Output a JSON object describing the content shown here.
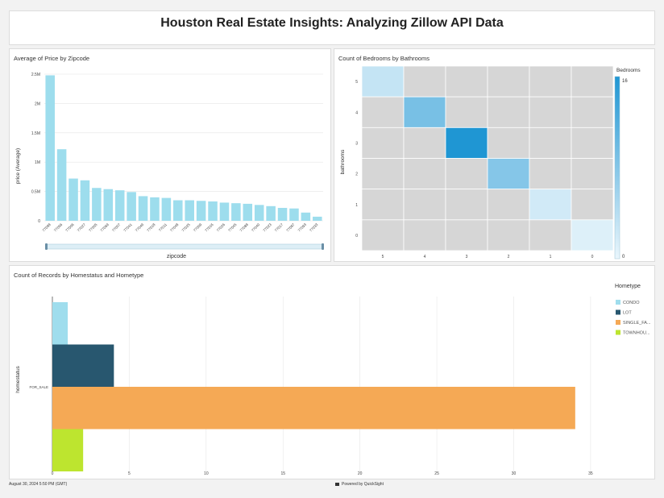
{
  "page": {
    "title": "Houston Real Estate Insights: Analyzing Zillow API Data"
  },
  "footer": {
    "timestamp": "August 30, 2024 5:50 PM (GMT)",
    "powered_by": "Powered by QuickSight"
  },
  "chart_data": [
    {
      "type": "bar",
      "title": "Average of Price by Zipcode",
      "xlabel": "zipcode",
      "ylabel": "price (Average)",
      "categories": [
        "77098",
        "77056",
        "77006",
        "77027",
        "77005",
        "77069",
        "77007",
        "77041",
        "77049",
        "77018",
        "77011",
        "77048",
        "77025",
        "77009",
        "77016",
        "77026",
        "77045",
        "77088",
        "77040",
        "77023",
        "77017",
        "77087",
        "77093",
        "77033"
      ],
      "values": [
        2480000,
        1220000,
        720000,
        690000,
        560000,
        540000,
        520000,
        490000,
        420000,
        400000,
        390000,
        350000,
        350000,
        340000,
        330000,
        310000,
        300000,
        290000,
        270000,
        250000,
        220000,
        210000,
        140000,
        70000
      ],
      "yticks": [
        0,
        500000,
        1000000,
        1500000,
        2000000,
        2500000
      ],
      "ytick_labels": [
        "0",
        "0.5M",
        "1M",
        "1.5M",
        "2M",
        "2.5M"
      ],
      "ylim": [
        0,
        2500000
      ],
      "color": "#9ddded",
      "grid": true
    },
    {
      "type": "heatmap",
      "title": "Count of Bedrooms by Bathrooms",
      "ylabel": "bathrooms",
      "legend_title": "Bedrooms",
      "legend_min": "0",
      "legend_max": "16",
      "x_categories": [
        "5",
        "4",
        "3",
        "2",
        "1",
        "0"
      ],
      "y_categories": [
        "5",
        "4",
        "3",
        "2",
        "1",
        "0"
      ],
      "cells": [
        {
          "x": "5",
          "y": "5",
          "value": 3
        },
        {
          "x": "4",
          "y": "4",
          "value": 9
        },
        {
          "x": "3",
          "y": "3",
          "value": 16
        },
        {
          "x": "2",
          "y": "2",
          "value": 8
        },
        {
          "x": "1",
          "y": "1",
          "value": 2
        },
        {
          "x": "0",
          "y": "0",
          "value": 1
        }
      ],
      "empty_color": "#d6d6d6",
      "min_color": "#eaf6fc",
      "max_color": "#1f96d3"
    },
    {
      "type": "bar",
      "orientation": "horizontal",
      "title": "Count of Records by Homestatus and Hometype",
      "ylabel": "homestatus",
      "categories": [
        "FOR_SALE"
      ],
      "legend_title": "Hometype",
      "series": [
        {
          "name": "CONDO",
          "values": [
            1
          ],
          "color": "#9fdded"
        },
        {
          "name": "LOT",
          "values": [
            4
          ],
          "color": "#28576f"
        },
        {
          "name": "SINGLE_FA...",
          "values": [
            34
          ],
          "color": "#f5a955"
        },
        {
          "name": "TOWNHOU...",
          "values": [
            2
          ],
          "color": "#bde52f"
        }
      ],
      "xticks": [
        0,
        5,
        10,
        15,
        20,
        25,
        30,
        35
      ],
      "xlim": [
        0,
        36
      ],
      "grid": true
    }
  ]
}
